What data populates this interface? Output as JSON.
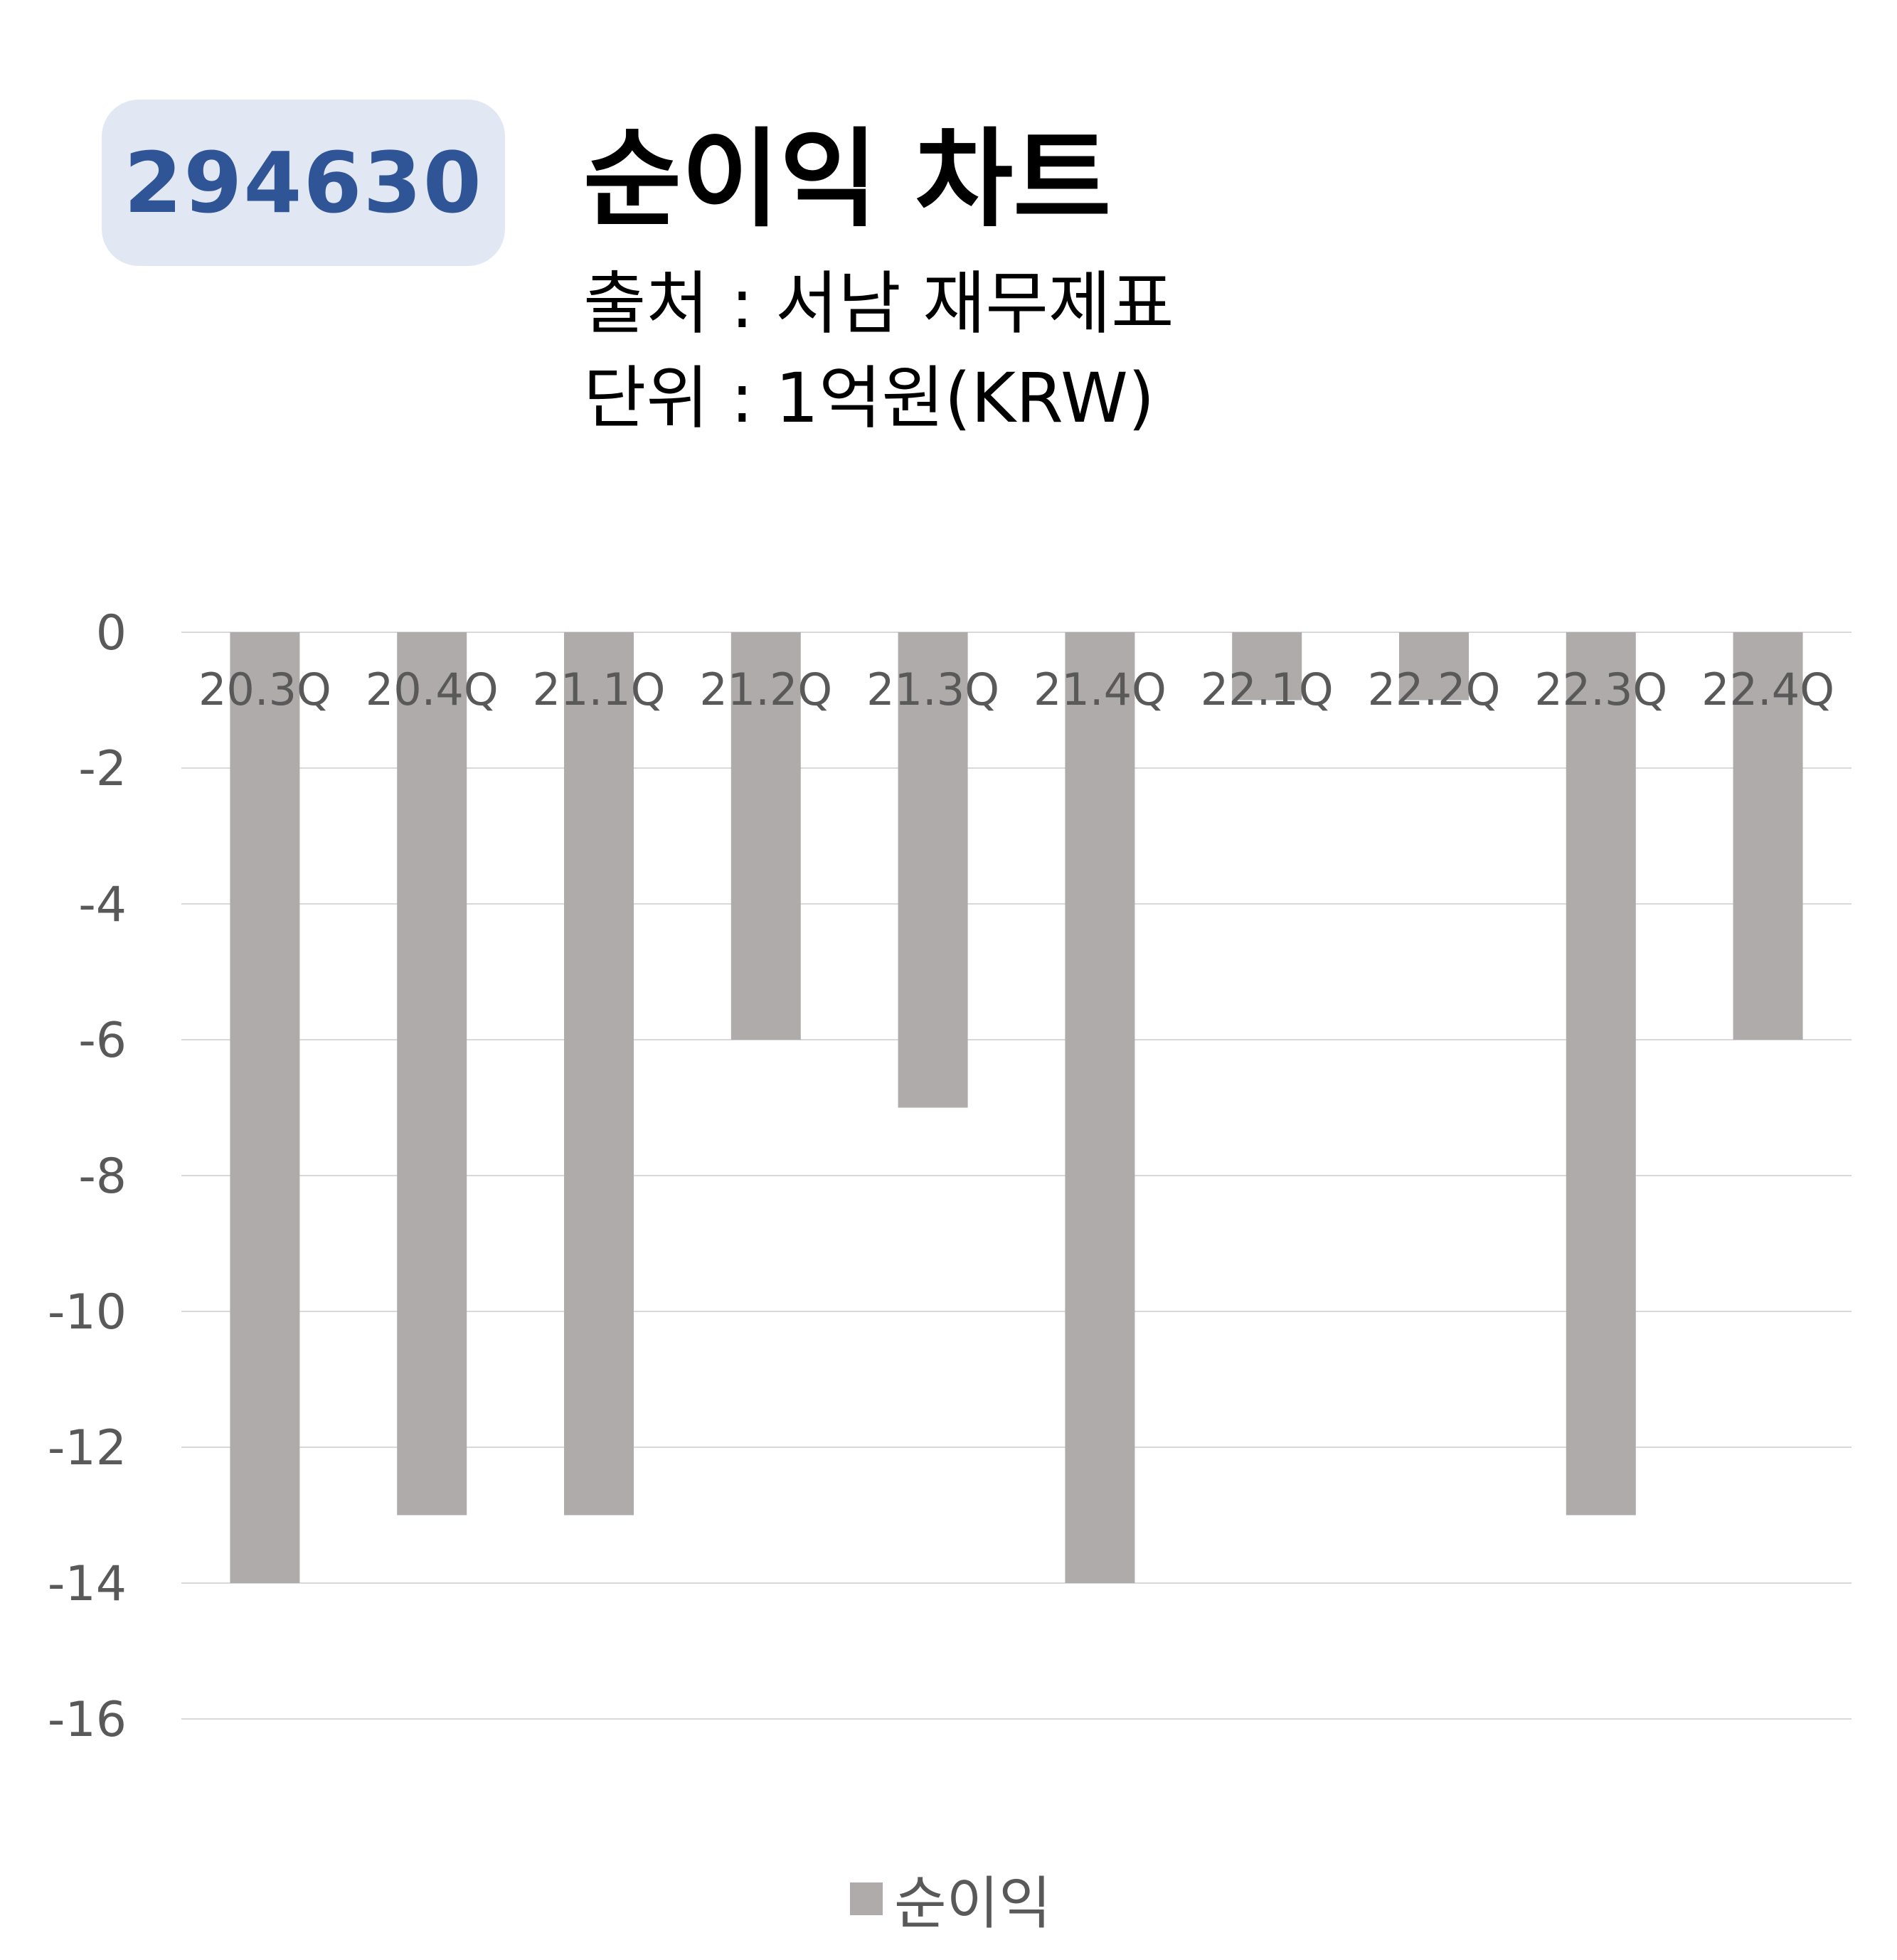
{
  "header": {
    "stock_code": "294630",
    "title": "순이익 차트",
    "source_line": "출처 : 서남 재무제표",
    "unit_line": "단위 : 1억원(KRW)"
  },
  "colors": {
    "badge_background": "#e2e8f3",
    "badge_text": "#2f5597",
    "bar": "#afabab",
    "gridline": "#d9d9d9",
    "tick_text": "#595959"
  },
  "chart_data": {
    "type": "bar",
    "title": "순이익 차트",
    "categories": [
      "20.3Q",
      "20.4Q",
      "21.1Q",
      "21.2Q",
      "21.3Q",
      "21.4Q",
      "22.1Q",
      "22.2Q",
      "22.3Q",
      "22.4Q"
    ],
    "series": [
      {
        "name": "순이익",
        "values": [
          -14,
          -13,
          -13,
          -6,
          -7,
          -14,
          -1,
          -1,
          -13,
          -6
        ]
      }
    ],
    "ylim": [
      -16,
      0
    ],
    "yticks": [
      0,
      -2,
      -4,
      -6,
      -8,
      -10,
      -12,
      -14,
      -16
    ],
    "xlabel": "",
    "ylabel": "",
    "grid": true,
    "legend_position": "bottom"
  }
}
